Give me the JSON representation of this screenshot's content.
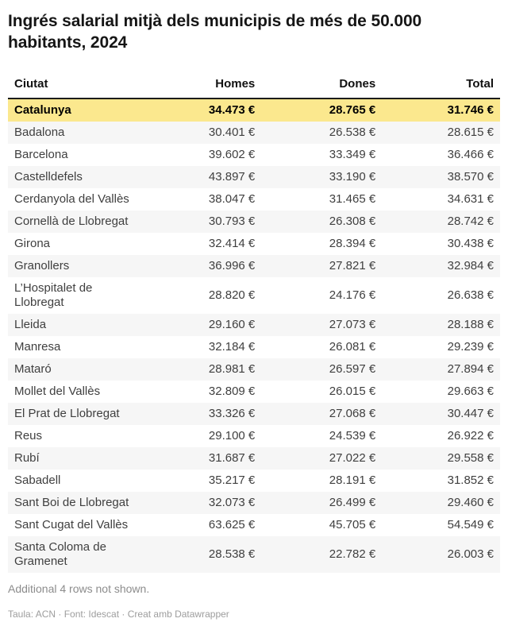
{
  "title": "Ingrés salarial mitjà dels municipis de més de 50.000 habitants, 2024",
  "table": {
    "columns": [
      "Ciutat",
      "Homes",
      "Dones",
      "Total"
    ],
    "highlight_row_index": 0,
    "rows": [
      [
        "Catalunya",
        "34.473 €",
        "28.765 €",
        "31.746 €"
      ],
      [
        "Badalona",
        "30.401 €",
        "26.538 €",
        "28.615 €"
      ],
      [
        "Barcelona",
        "39.602 €",
        "33.349 €",
        "36.466 €"
      ],
      [
        "Castelldefels",
        "43.897 €",
        "33.190 €",
        "38.570 €"
      ],
      [
        "Cerdanyola del Vallès",
        "38.047 €",
        "31.465 €",
        "34.631 €"
      ],
      [
        "Cornellà de Llobregat",
        "30.793 €",
        "26.308 €",
        "28.742 €"
      ],
      [
        "Girona",
        "32.414 €",
        "28.394 €",
        "30.438 €"
      ],
      [
        "Granollers",
        "36.996 €",
        "27.821 €",
        "32.984 €"
      ],
      [
        "L’Hospitalet de Llobregat",
        "28.820 €",
        "24.176 €",
        "26.638 €"
      ],
      [
        "Lleida",
        "29.160 €",
        "27.073 €",
        "28.188 €"
      ],
      [
        "Manresa",
        "32.184 €",
        "26.081 €",
        "29.239 €"
      ],
      [
        "Mataró",
        "28.981 €",
        "26.597 €",
        "27.894 €"
      ],
      [
        "Mollet del Vallès",
        "32.809 €",
        "26.015 €",
        "29.663 €"
      ],
      [
        "El Prat de Llobregat",
        "33.326 €",
        "27.068 €",
        "30.447 €"
      ],
      [
        "Reus",
        "29.100 €",
        "24.539 €",
        "26.922 €"
      ],
      [
        "Rubí",
        "31.687 €",
        "27.022 €",
        "29.558 €"
      ],
      [
        "Sabadell",
        "35.217 €",
        "28.191 €",
        "31.852 €"
      ],
      [
        "Sant Boi de Llobregat",
        "32.073 €",
        "26.499 €",
        "29.460 €"
      ],
      [
        "Sant Cugat del Vallès",
        "63.625 €",
        "45.705 €",
        "54.549 €"
      ],
      [
        "Santa Coloma de Gramenet",
        "28.538 €",
        "22.782 €",
        "26.003 €"
      ]
    ]
  },
  "notes": {
    "additional_rows": "Additional 4 rows not shown."
  },
  "footer": {
    "byline": "Taula: ACN · Font: Idescat · Creat amb Datawrapper"
  },
  "colors": {
    "highlight_row_bg": "#fbe88e",
    "stripe_row_bg": "#f6f6f6",
    "header_border": "#1b1b1b",
    "body_text": "#3f3f3f",
    "note_text": "#8c8c8c",
    "byline_text": "#9d9d9d"
  },
  "chart_data": {
    "type": "table",
    "title": "Ingrés salarial mitjà dels municipis de més de 50.000 habitants, 2024",
    "columns": [
      "Ciutat",
      "Homes",
      "Dones",
      "Total"
    ],
    "unit": "EUR",
    "highlighted_row": "Catalunya",
    "rows": [
      [
        "Catalunya",
        34473,
        28765,
        31746
      ],
      [
        "Badalona",
        30401,
        26538,
        28615
      ],
      [
        "Barcelona",
        39602,
        33349,
        36466
      ],
      [
        "Castelldefels",
        43897,
        33190,
        38570
      ],
      [
        "Cerdanyola del Vallès",
        38047,
        31465,
        34631
      ],
      [
        "Cornellà de Llobregat",
        30793,
        26308,
        28742
      ],
      [
        "Girona",
        32414,
        28394,
        30438
      ],
      [
        "Granollers",
        36996,
        27821,
        32984
      ],
      [
        "L’Hospitalet de Llobregat",
        28820,
        24176,
        26638
      ],
      [
        "Lleida",
        29160,
        27073,
        28188
      ],
      [
        "Manresa",
        32184,
        26081,
        29239
      ],
      [
        "Mataró",
        28981,
        26597,
        27894
      ],
      [
        "Mollet del Vallès",
        32809,
        26015,
        29663
      ],
      [
        "El Prat de Llobregat",
        33326,
        27068,
        30447
      ],
      [
        "Reus",
        29100,
        24539,
        26922
      ],
      [
        "Rubí",
        31687,
        27022,
        29558
      ],
      [
        "Sabadell",
        35217,
        28191,
        31852
      ],
      [
        "Sant Boi de Llobregat",
        32073,
        26499,
        29460
      ],
      [
        "Sant Cugat del Vallès",
        63625,
        45705,
        54549
      ],
      [
        "Santa Coloma de Gramenet",
        28538,
        22782,
        26003
      ]
    ],
    "notes": "Additional 4 rows not shown."
  }
}
